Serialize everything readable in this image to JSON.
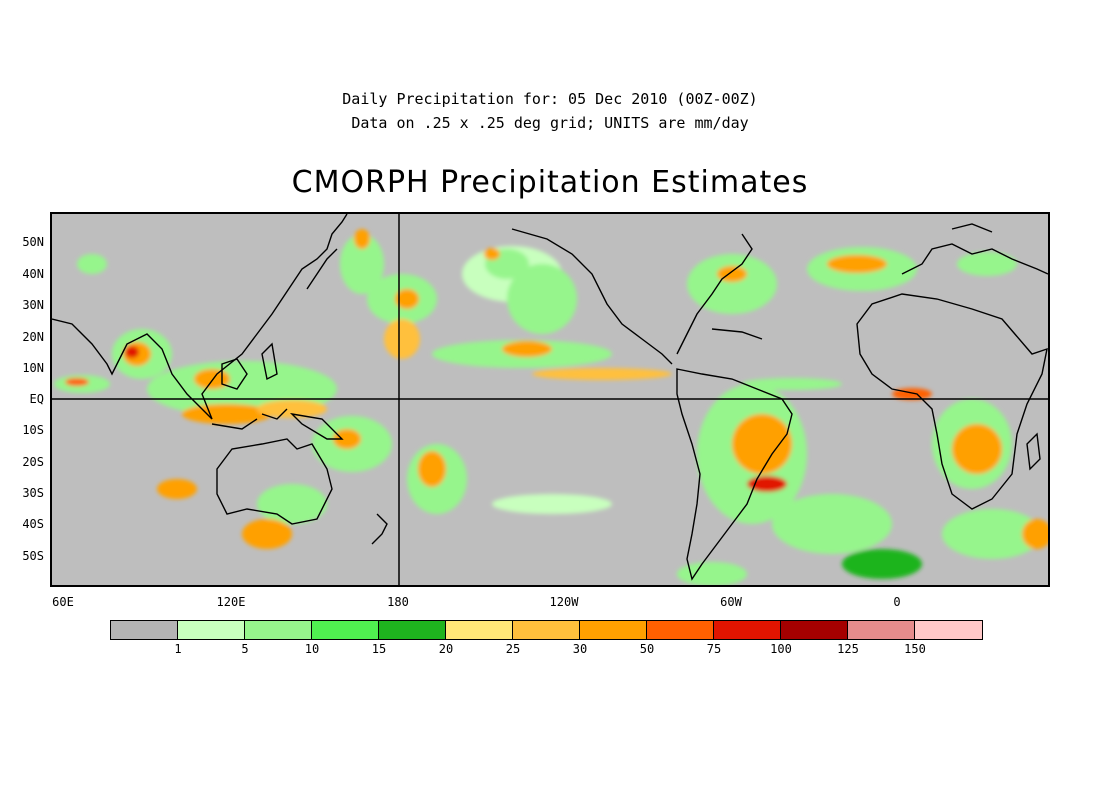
{
  "header": {
    "subtitle_line1": "Daily Precipitation for: 05 Dec 2010 (00Z-00Z)",
    "subtitle_line2": "Data on .25 x .25 deg grid; UNITS are mm/day",
    "title": "CMORPH Precipitation Estimates"
  },
  "map": {
    "lat_labels": [
      "50N",
      "40N",
      "30N",
      "20N",
      "10N",
      "EQ",
      "10S",
      "20S",
      "30S",
      "40S",
      "50S"
    ],
    "lon_labels": [
      "60E",
      "120E",
      "180",
      "120W",
      "60W",
      "0"
    ],
    "background_color": "#bebebe"
  },
  "colorbar": {
    "colors": [
      "#b4b4b4",
      "#c8ffbe",
      "#96f58c",
      "#50f050",
      "#1eb41e",
      "#ffe878",
      "#ffc03c",
      "#ffa000",
      "#ff6000",
      "#e11400",
      "#a50000",
      "#e68c8c",
      "#ffc8c8"
    ],
    "labels": [
      "1",
      "5",
      "10",
      "15",
      "20",
      "25",
      "30",
      "50",
      "75",
      "100",
      "125",
      "150"
    ]
  }
}
